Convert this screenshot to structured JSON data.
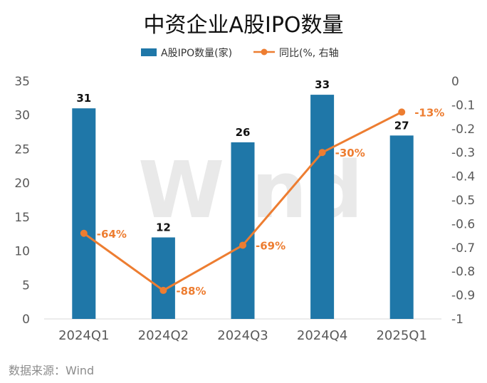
{
  "chart_data": {
    "type": "bar",
    "title": "中资企业A股IPO数量",
    "categories": [
      "2024Q1",
      "2024Q2",
      "2024Q3",
      "2024Q4",
      "2025Q1"
    ],
    "series": [
      {
        "name": "A股IPO数量(家)",
        "type": "bar",
        "axis": "left",
        "values": [
          31,
          12,
          26,
          33,
          27
        ],
        "labels": [
          "31",
          "12",
          "26",
          "33",
          "27"
        ],
        "color": "#1f77a8"
      },
      {
        "name": "同比(%, 右轴",
        "type": "line",
        "axis": "right",
        "values": [
          -0.64,
          -0.88,
          -0.69,
          -0.3,
          -0.13
        ],
        "labels": [
          "-64%",
          "-88%",
          "-69%",
          "-30%",
          "-13%"
        ],
        "color": "#ed7d31"
      }
    ],
    "y_left": {
      "min": 0,
      "max": 35,
      "ticks": [
        "0",
        "5",
        "10",
        "15",
        "20",
        "25",
        "30",
        "35"
      ]
    },
    "y_right": {
      "min": -1,
      "max": 0,
      "ticks": [
        "-1",
        "-0.9",
        "-0.8",
        "-0.7",
        "-0.6",
        "-0.5",
        "-0.4",
        "-0.3",
        "-0.2",
        "-0.1",
        "0"
      ]
    },
    "legend_position": "top",
    "grid": false
  },
  "source": "数据来源：Wind",
  "watermark": "Wind"
}
